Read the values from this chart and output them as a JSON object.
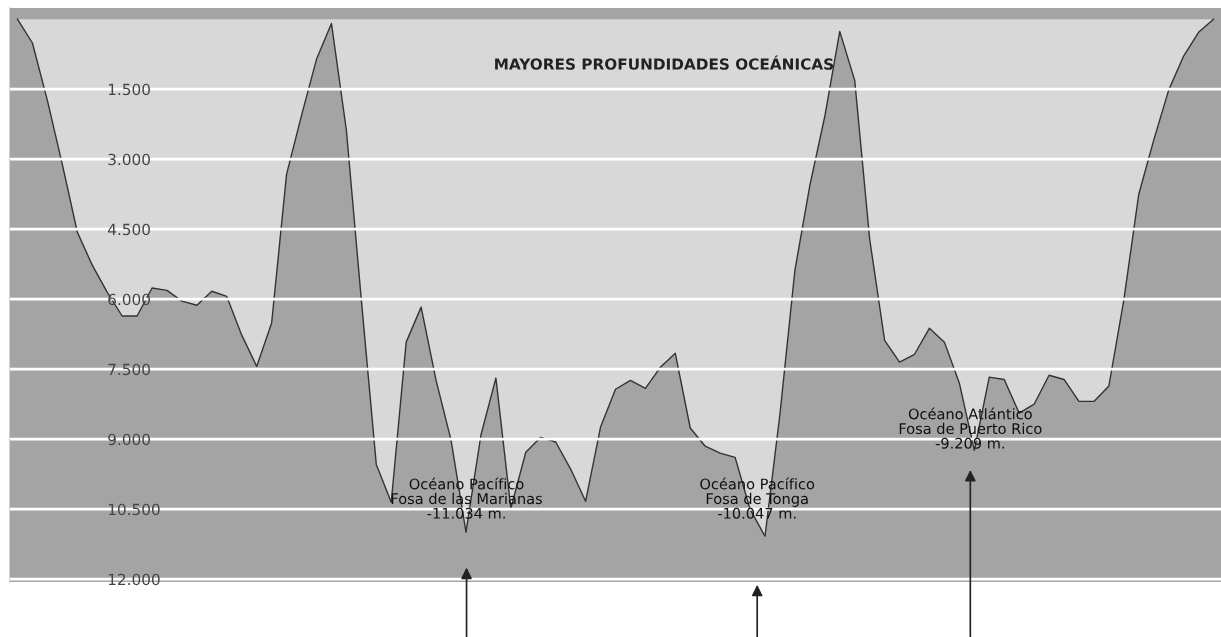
{
  "chart_data": {
    "type": "area",
    "title": "MAYORES PROFUNDIDADES OCEÁNICAS",
    "categories": [
      null,
      null,
      null,
      null,
      null,
      null,
      null,
      null,
      null,
      null,
      null,
      null,
      null,
      null,
      null,
      null,
      null,
      null,
      null,
      null,
      null,
      null,
      null,
      null,
      null,
      null,
      null,
      null,
      null,
      null,
      null,
      null,
      null,
      null,
      null,
      null,
      null,
      null,
      null,
      null,
      null,
      null,
      null,
      null,
      null,
      null,
      null,
      null,
      null,
      null,
      null,
      null,
      null,
      null,
      null,
      null,
      null,
      null,
      null,
      null,
      null,
      null,
      null,
      null,
      null,
      null,
      null,
      null,
      null,
      null,
      null,
      null,
      null,
      null,
      null,
      null,
      null,
      null,
      null,
      null,
      null
    ],
    "series": [
      {
        "color": "#d8d8d8",
        "values": [
          0,
          510,
          1740,
          3110,
          4560,
          5270,
          5850,
          6360,
          6360,
          5760,
          5810,
          6040,
          6130,
          5830,
          5940,
          6770,
          7440,
          6510,
          3320,
          2060,
          860,
          90,
          2380,
          6020,
          9540,
          10350,
          6920,
          6170,
          7740,
          9020,
          10990,
          8910,
          7690,
          10480,
          9280,
          8960,
          9060,
          9640,
          10330,
          8740,
          7930,
          7740,
          7910,
          7460,
          7160,
          8760,
          9150,
          9300,
          9390,
          10500,
          11080,
          8460,
          5380,
          3560,
          2080,
          260,
          1310,
          4710,
          6880,
          7350,
          7180,
          6620,
          6920,
          7800,
          9240,
          7670,
          7720,
          8440,
          8250,
          7630,
          7720,
          8190,
          8190,
          7860,
          6020,
          3750,
          2590,
          1520,
          790,
          280,
          0
        ]
      }
    ],
    "ylim": [
      12060,
      -240
    ],
    "yticks": [
      {
        "value": 1500,
        "label": "1.500"
      },
      {
        "value": 3000,
        "label": "3.000"
      },
      {
        "value": 4500,
        "label": "4.500"
      },
      {
        "value": 6000,
        "label": "6.000"
      },
      {
        "value": 7500,
        "label": "7.500"
      },
      {
        "value": 9000,
        "label": "9.000"
      },
      {
        "value": 10500,
        "label": "10.500"
      },
      {
        "value": 12000,
        "label": "12.000"
      }
    ],
    "grid": "y",
    "tick_labels": "y",
    "annotations": [
      "Océano Pacífico\nFosa de las Marianas\n-11.034 m.",
      "Océano Pacífico\nFosa de Tonga\n-10.047 m.",
      "Océano Atlántico\nFosa de Puerto Rico\n-9.209 m."
    ]
  }
}
